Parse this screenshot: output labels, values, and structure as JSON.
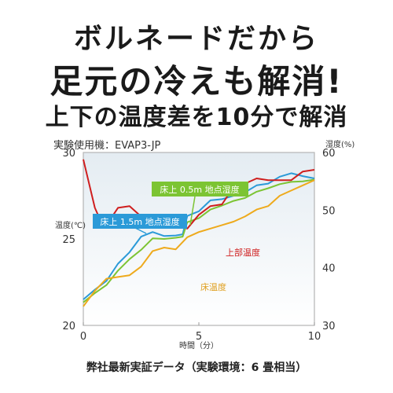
{
  "headline": {
    "line1": "ボルネードだから",
    "line2": "足元の冷えも解消!",
    "line3": "上下の温度差を10分で解消"
  },
  "device_label": "実験使用機：EVAP3-JP",
  "footnote": "弊社最新実証データ（実験環境：6 畳相当）",
  "chart_data": {
    "type": "line",
    "title": "",
    "xlabel": "時間（分）",
    "ylabel_left": "温度(℃)",
    "ylabel_right": "湿度(%)",
    "xlim": [
      0,
      10
    ],
    "ylim_left": [
      20,
      30
    ],
    "ylim_right": [
      30,
      60
    ],
    "x_ticks": [
      0,
      5,
      10
    ],
    "y_left_ticks": [
      20,
      25,
      30
    ],
    "y_right_ticks": [
      30,
      40,
      50,
      60
    ],
    "grid": false,
    "colors": {
      "plot_border": "#b5b5b5",
      "bg_top": "#e4ecf2",
      "bg_bottom": "#ffffff"
    },
    "series": [
      {
        "name": "床上 1.5m 地点湿度",
        "axis": "right",
        "color": "#2b9ad8",
        "label_bg": "#2b9ad8",
        "x": [
          0,
          0.5,
          1,
          1.5,
          2,
          2.5,
          3,
          3.5,
          4,
          4.3,
          4.5,
          5,
          5.5,
          6,
          6.5,
          7,
          7.5,
          8,
          8.5,
          9,
          9.5,
          10
        ],
        "y": [
          34.5,
          36.2,
          37.7,
          40.7,
          42.7,
          45.4,
          46.2,
          45.5,
          45.6,
          45.8,
          49.0,
          49.8,
          51.7,
          51.9,
          52.5,
          53.1,
          54.3,
          54.6,
          55.8,
          56.4,
          55.9,
          55.5
        ]
      },
      {
        "name": "床上 0.5m 地点湿度",
        "axis": "right",
        "color": "#7cc433",
        "label_bg": "#7cc433",
        "x": [
          0,
          0.5,
          1,
          1.5,
          2,
          2.5,
          3,
          3.5,
          4,
          4.3,
          4.5,
          5,
          5.5,
          6,
          6.5,
          7,
          7.5,
          8,
          8.5,
          9,
          9.5,
          10
        ],
        "y": [
          34.0,
          35.6,
          37.0,
          39.5,
          41.5,
          43.1,
          45.1,
          45.0,
          45.2,
          45.4,
          47.9,
          48.6,
          50.1,
          50.8,
          51.6,
          52.1,
          53.2,
          53.8,
          54.5,
          54.9,
          55.0,
          55.3
        ]
      },
      {
        "name": "上部温度",
        "axis": "left",
        "color": "#cf1e1e",
        "x": [
          0,
          0.5,
          0.8,
          1,
          1.5,
          2,
          2.5,
          3,
          3.5,
          4,
          4.5,
          5,
          5.5,
          6,
          6.5,
          7,
          7.5,
          8,
          8.5,
          9,
          9.5,
          10
        ],
        "y": [
          29.6,
          26.8,
          25.9,
          25.8,
          26.8,
          26.9,
          26.3,
          26.3,
          25.9,
          25.8,
          25.6,
          26.4,
          26.9,
          27.0,
          28.0,
          28.2,
          28.5,
          28.4,
          28.4,
          28.4,
          28.9,
          29.0
        ]
      },
      {
        "name": "床温度",
        "axis": "left",
        "color": "#eeaa1c",
        "x": [
          0,
          0.5,
          1,
          1.5,
          2,
          2.5,
          3,
          3.5,
          4,
          4.5,
          5,
          5.5,
          6,
          6.5,
          7,
          7.5,
          8,
          8.5,
          9,
          9.5,
          10
        ],
        "y": [
          21.1,
          22.0,
          22.7,
          22.8,
          22.9,
          23.4,
          24.3,
          24.5,
          24.4,
          25.1,
          25.4,
          25.6,
          25.8,
          26.0,
          26.3,
          26.7,
          26.9,
          27.5,
          27.8,
          28.1,
          28.4
        ]
      }
    ],
    "annotations": [
      {
        "text": "床上 1.5m 地点湿度",
        "series": 0
      },
      {
        "text": "床上 0.5m 地点湿度",
        "series": 1
      },
      {
        "text": "上部温度",
        "series": 2
      },
      {
        "text": "床温度",
        "series": 3
      }
    ]
  }
}
